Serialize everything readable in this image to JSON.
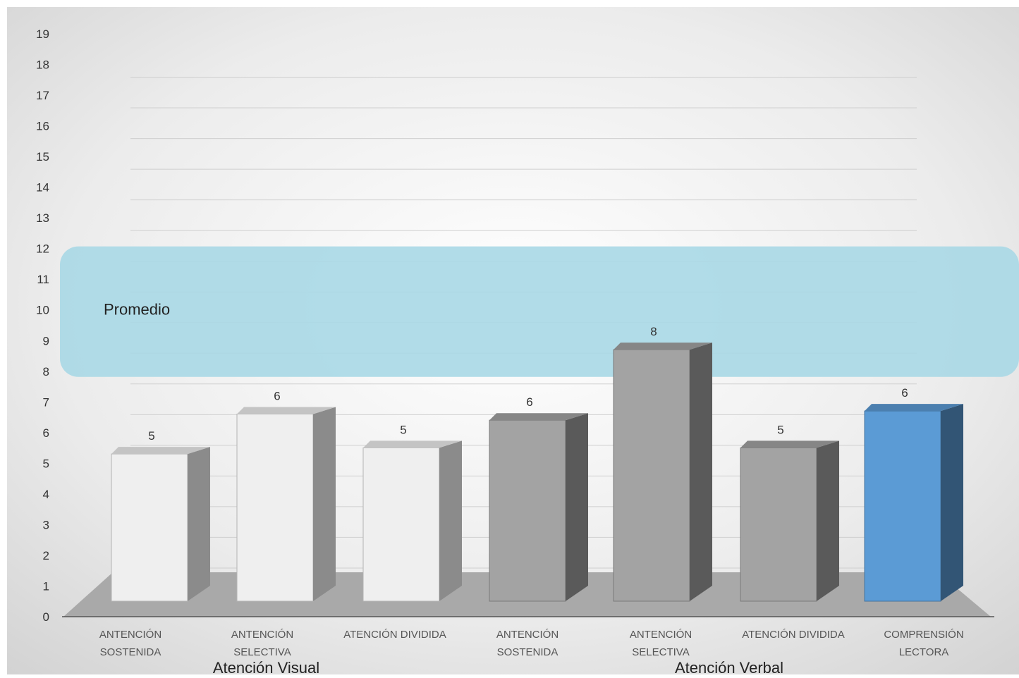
{
  "chart_data": {
    "type": "bar",
    "title": "",
    "ylim": [
      0,
      19
    ],
    "y_ticks": [
      0,
      1,
      2,
      3,
      4,
      5,
      6,
      7,
      8,
      9,
      10,
      11,
      12,
      13,
      14,
      15,
      16,
      17,
      18,
      19
    ],
    "categories": [
      [
        "ANTENCIÓN",
        "SOSTENIDA"
      ],
      [
        "ANTENCIÓN",
        "SELECTIVA"
      ],
      [
        "ATENCIÓN DIVIDIDA"
      ],
      [
        "ANTENCIÓN",
        "SOSTENIDA"
      ],
      [
        "ANTENCIÓN",
        "SELECTIVA"
      ],
      [
        "ATENCIÓN DIVIDIDA"
      ],
      [
        "COMPRENSIÓN",
        "LECTORA"
      ]
    ],
    "values": [
      4.8,
      6.1,
      5.0,
      5.9,
      8.2,
      5.0,
      6.2
    ],
    "data_labels": [
      "5",
      "6",
      "5",
      "6",
      "8",
      "5",
      "6"
    ],
    "bar_colors": [
      "#efefef",
      "#efefef",
      "#efefef",
      "#a3a3a3",
      "#a3a3a3",
      "#a3a3a3",
      "#5b9bd5"
    ],
    "groups": [
      {
        "label": "Atención Visual",
        "from": 0,
        "to": 2
      },
      {
        "label": "Atención Verbal",
        "from": 3,
        "to": 6
      }
    ],
    "band": {
      "label": "Promedio",
      "from": 8,
      "to": 12,
      "color": "#a8d8e6"
    },
    "grid": true
  }
}
